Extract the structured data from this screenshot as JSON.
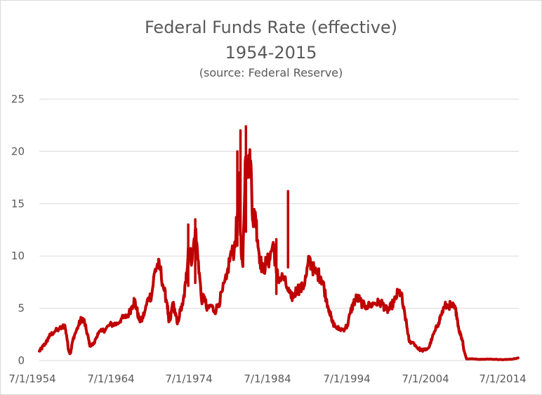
{
  "chart_data": {
    "type": "line",
    "title": "Federal Funds Rate (effective)",
    "subtitle": "1954-2015",
    "source": "(source: Federal Reserve)",
    "xlabel": "",
    "ylabel": "",
    "ylim": [
      0,
      25
    ],
    "yticks": [
      0,
      5,
      10,
      15,
      20,
      25
    ],
    "xlim": [
      "1954-07-01",
      "2015-12-31"
    ],
    "xticks": [
      "7/1/1954",
      "7/1/1964",
      "7/1/1974",
      "7/1/1984",
      "7/1/1994",
      "7/1/2004",
      "7/1/2014"
    ],
    "grid": "horizontal",
    "legend": "none",
    "line_color": "#c00000",
    "series": [
      {
        "x": [
          1954.5,
          1954.75,
          1955.0,
          1955.25,
          1955.5,
          1955.75,
          1956.0,
          1956.5,
          1957.0,
          1957.5,
          1957.75,
          1958.0,
          1958.25,
          1958.5,
          1958.75,
          1959.0,
          1959.5,
          1959.9,
          1960.2,
          1960.5,
          1960.8,
          1961.0,
          1961.5,
          1962.0,
          1962.5,
          1963.0,
          1963.5,
          1964.0,
          1964.5,
          1965.0,
          1965.5,
          1966.0,
          1966.4,
          1966.7,
          1967.0,
          1967.3,
          1967.6,
          1968.0,
          1968.5,
          1968.9,
          1969.3,
          1969.7,
          1970.0,
          1970.5,
          1970.9,
          1971.1,
          1971.3,
          1971.6,
          1971.9,
          1972.2,
          1972.6,
          1972.9,
          1973.3,
          1973.6,
          1973.8,
          1974.1,
          1974.5,
          1974.9,
          1975.3,
          1975.7,
          1976.0,
          1976.5,
          1977.0,
          1977.5,
          1978.0,
          1978.5,
          1979.0,
          1979.5,
          1979.9,
          1980.1,
          1980.3,
          1980.6,
          1980.9,
          1981.0,
          1981.3,
          1981.6,
          1981.9,
          1982.2,
          1982.5,
          1982.8,
          1983.2,
          1983.6,
          1984.0,
          1984.5,
          1984.9,
          1985.3,
          1985.8,
          1986.3,
          1986.8,
          1987.2,
          1987.6,
          1987.9,
          1988.3,
          1988.7,
          1989.1,
          1989.4,
          1989.8,
          1990.2,
          1990.6,
          1990.9,
          1991.3,
          1991.7,
          1992.0,
          1992.5,
          1993.0,
          1993.5,
          1994.0,
          1994.4,
          1994.8,
          1995.2,
          1995.6,
          1996.0,
          1996.5,
          1997.0,
          1997.5,
          1998.0,
          1998.5,
          1998.9,
          1999.3,
          1999.7,
          2000.0,
          2000.5,
          2000.9,
          2001.2,
          2001.5,
          2001.8,
          2001.95,
          2002.5,
          2003.0,
          2003.5,
          2004.0,
          2004.5,
          2004.9,
          2005.3,
          2005.7,
          2006.0,
          2006.5,
          2007.0,
          2007.5,
          2007.75,
          2008.0,
          2008.3,
          2008.6,
          2008.8,
          2008.95,
          2009.3,
          2010.0,
          2011.0,
          2012.0,
          2013.0,
          2014.0,
          2015.0,
          2015.9
        ],
        "y": [
          0.9,
          1.1,
          1.4,
          1.6,
          1.9,
          2.3,
          2.5,
          2.8,
          3.0,
          3.2,
          3.4,
          2.4,
          1.0,
          0.7,
          1.8,
          2.4,
          3.3,
          4.0,
          3.9,
          3.0,
          2.1,
          1.4,
          1.6,
          2.6,
          2.8,
          3.0,
          3.4,
          3.5,
          3.5,
          4.0,
          4.1,
          4.5,
          5.2,
          5.8,
          4.9,
          3.9,
          3.8,
          4.6,
          6.0,
          6.2,
          8.5,
          9.2,
          8.8,
          6.7,
          5.5,
          3.7,
          3.9,
          5.5,
          4.7,
          3.5,
          4.8,
          5.3,
          7.5,
          10.7,
          10.3,
          9.6,
          12.5,
          9.5,
          5.8,
          6.1,
          4.8,
          5.3,
          4.7,
          5.4,
          6.7,
          7.8,
          10.1,
          10.5,
          13.8,
          17.6,
          12.0,
          9.0,
          18.9,
          19.0,
          18.5,
          19.1,
          13.3,
          14.2,
          11.5,
          9.7,
          8.5,
          9.4,
          9.6,
          11.3,
          8.4,
          7.8,
          8.0,
          6.9,
          6.0,
          6.3,
          6.9,
          6.8,
          7.0,
          8.0,
          9.6,
          9.2,
          8.5,
          8.3,
          8.0,
          7.4,
          5.9,
          4.8,
          3.8,
          3.2,
          3.0,
          3.0,
          3.3,
          4.6,
          5.5,
          6.0,
          5.8,
          5.3,
          5.2,
          5.3,
          5.5,
          5.5,
          5.5,
          4.9,
          4.8,
          5.3,
          5.6,
          6.5,
          6.5,
          5.0,
          3.9,
          2.5,
          1.8,
          1.7,
          1.2,
          1.0,
          1.0,
          1.3,
          2.2,
          2.9,
          3.6,
          4.3,
          5.2,
          5.3,
          5.2,
          5.0,
          4.6,
          3.0,
          2.3,
          1.9,
          1.0,
          0.15,
          0.18,
          0.1,
          0.15,
          0.12,
          0.09,
          0.12,
          0.25
        ]
      }
    ]
  }
}
